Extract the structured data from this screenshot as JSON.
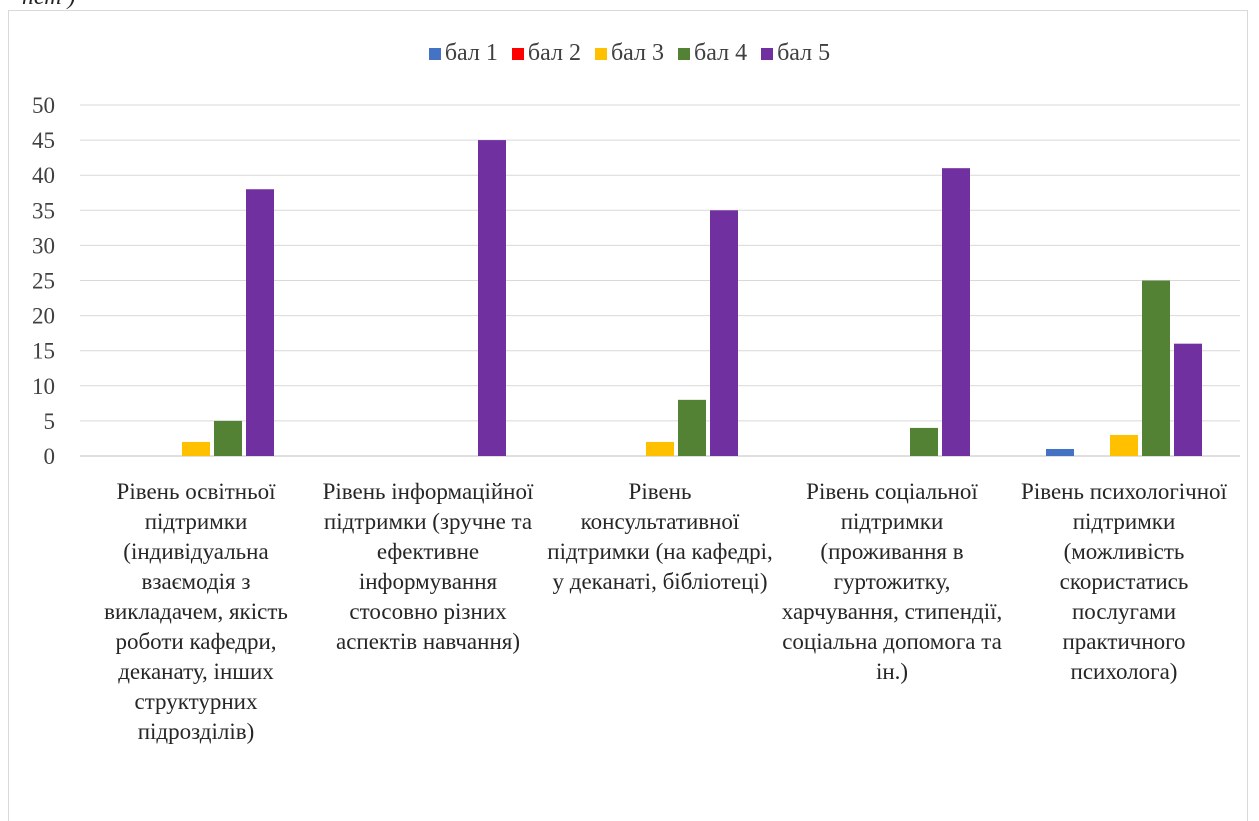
{
  "chart_data": {
    "type": "bar",
    "categories": [
      "Рівень освітньої підтримки (індивідуальна взаємодія з викладачем, якість роботи кафедри, деканату, інших структурних підрозділів)",
      "Рівень інформаційної підтримки (зручне та ефективне інформування стосовно різних аспектів навчання)",
      "Рівень консультативної підтримки (на кафедрі, у деканаті, бібліотеці)",
      "Рівень соціальної підтримки (проживання в гуртожитку, харчування, стипендії, соціальна допомога та ін.)",
      "Рівень психологічної підтримки (можливість скористатись послугами практичного психолога)"
    ],
    "series": [
      {
        "name": "бал 1",
        "color": "#4472c4",
        "values": [
          0,
          0,
          0,
          0,
          1
        ]
      },
      {
        "name": "бал 2",
        "color": "#ff0000",
        "values": [
          0,
          0,
          0,
          0,
          0
        ]
      },
      {
        "name": "бал 3",
        "color": "#ffc000",
        "values": [
          2,
          0,
          2,
          0,
          3
        ]
      },
      {
        "name": "бал 4",
        "color": "#548235",
        "values": [
          5,
          0,
          8,
          4,
          25
        ]
      },
      {
        "name": "бал 5",
        "color": "#7030a0",
        "values": [
          38,
          45,
          35,
          41,
          16
        ]
      }
    ],
    "yticks": [
      "0",
      "5",
      "10",
      "15",
      "20",
      "25",
      "30",
      "35",
      "40",
      "45",
      "50"
    ],
    "ylim": [
      0,
      50
    ],
    "grid": true,
    "legend_position": "top"
  }
}
